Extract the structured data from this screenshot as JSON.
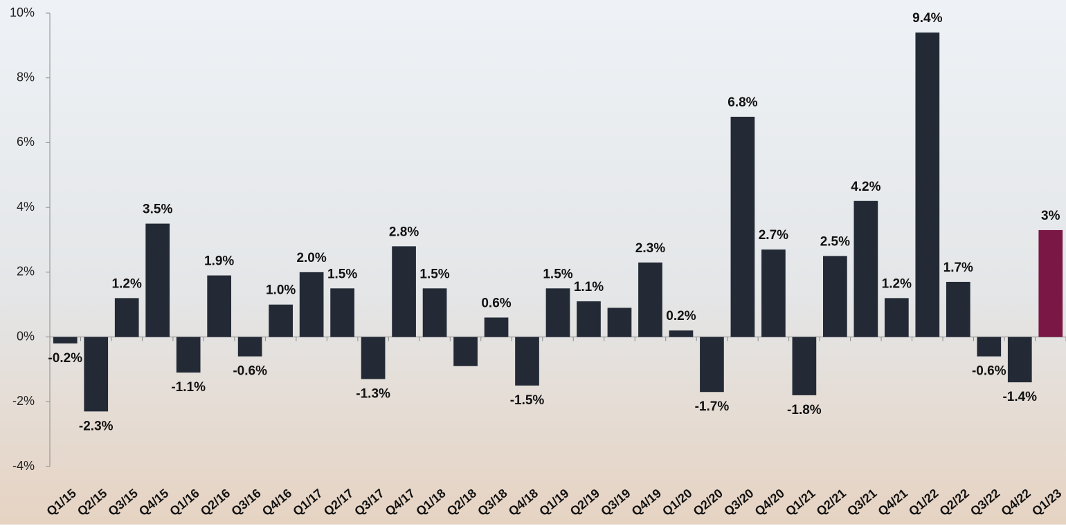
{
  "chart_data": {
    "type": "bar",
    "categories": [
      "Q1/15",
      "Q2/15",
      "Q3/15",
      "Q4/15",
      "Q1/16",
      "Q2/16",
      "Q3/16",
      "Q4/16",
      "Q1/17",
      "Q2/17",
      "Q3/17",
      "Q4/17",
      "Q1/18",
      "Q2/18",
      "Q3/18",
      "Q4/18",
      "Q1/19",
      "Q2/19",
      "Q3/19",
      "Q4/19",
      "Q1/20",
      "Q2/20",
      "Q3/20",
      "Q4/20",
      "Q1/21",
      "Q2/21",
      "Q3/21",
      "Q4/21",
      "Q1/22",
      "Q2/22",
      "Q3/22",
      "Q4/22",
      "Q1/23"
    ],
    "values": [
      -0.2,
      -2.3,
      1.2,
      3.5,
      -1.1,
      1.9,
      -0.6,
      1.0,
      2.0,
      1.5,
      -1.3,
      2.8,
      1.5,
      -0.9,
      0.6,
      -1.5,
      1.5,
      1.1,
      0.9,
      2.3,
      0.2,
      -1.7,
      6.8,
      2.7,
      -1.8,
      2.5,
      4.2,
      1.2,
      9.4,
      1.7,
      -0.6,
      -1.4,
      3.3
    ],
    "value_labels": [
      "-0.2%",
      "-2.3%",
      "1.2%",
      "3.5%",
      "-1.1%",
      "1.9%",
      "-0.6%",
      "1.0%",
      "2.0%",
      "1.5%",
      "-1.3%",
      "2.8%",
      "1.5%",
      null,
      "0.6%",
      "-1.5%",
      "1.5%",
      "1.1%",
      null,
      "2.3%",
      "0.2%",
      "-1.7%",
      "6.8%",
      "2.7%",
      "-1.8%",
      "2.5%",
      "4.2%",
      "1.2%",
      "9.4%",
      "1.7%",
      "-0.6%",
      "-1.4%",
      "3%"
    ],
    "colors": [
      "#232a36",
      "#232a36",
      "#232a36",
      "#232a36",
      "#232a36",
      "#232a36",
      "#232a36",
      "#232a36",
      "#232a36",
      "#232a36",
      "#232a36",
      "#232a36",
      "#232a36",
      "#232a36",
      "#232a36",
      "#232a36",
      "#232a36",
      "#232a36",
      "#232a36",
      "#232a36",
      "#232a36",
      "#232a36",
      "#232a36",
      "#232a36",
      "#232a36",
      "#232a36",
      "#232a36",
      "#232a36",
      "#232a36",
      "#232a36",
      "#232a36",
      "#232a36",
      "#7b1745"
    ],
    "ylim": [
      -4,
      10
    ],
    "yticks": [
      {
        "value": -4,
        "label": "-4%"
      },
      {
        "value": -2,
        "label": "-2%"
      },
      {
        "value": 0,
        "label": "0%"
      },
      {
        "value": 2,
        "label": "2%"
      },
      {
        "value": 4,
        "label": "4%"
      },
      {
        "value": 6,
        "label": "6%"
      },
      {
        "value": 8,
        "label": "8%"
      },
      {
        "value": 10,
        "label": "10%"
      }
    ]
  }
}
